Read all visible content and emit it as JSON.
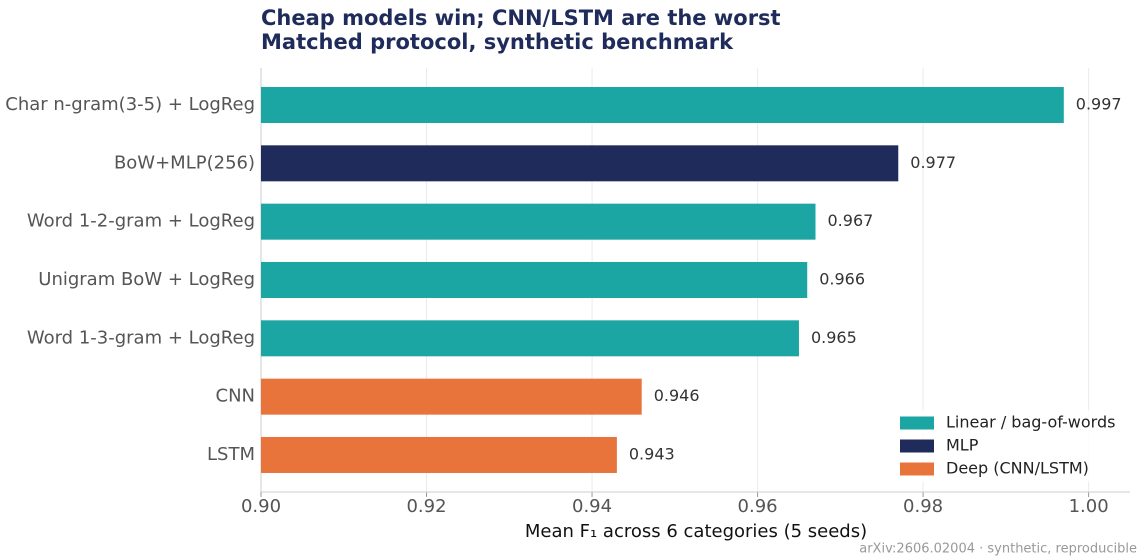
{
  "chart_data": {
    "type": "barh",
    "title": "Cheap models win; CNN/LSTM are the worst",
    "subtitle": "Matched protocol, synthetic benchmark",
    "xlabel": "Mean F₁ across 6 categories (5 seeds)",
    "footnote": "arXiv:2606.02004 · synthetic, reproducible",
    "categories": [
      "Char n-gram(3-5) + LogReg",
      "BoW+MLP(256)",
      "Word 1-2-gram + LogReg",
      "Unigram BoW + LogReg",
      "Word 1-3-gram + LogReg",
      "CNN",
      "LSTM"
    ],
    "values": [
      0.997,
      0.977,
      0.967,
      0.966,
      0.965,
      0.946,
      0.943
    ],
    "colors": [
      "#1ba5a3",
      "#1f2b5a",
      "#1ba5a3",
      "#1ba5a3",
      "#1ba5a3",
      "#e8743c",
      "#e8743c"
    ],
    "legend": [
      {
        "name": "Linear / bag-of-words",
        "color": "#1ba5a3"
      },
      {
        "name": "MLP",
        "color": "#1f2b5a"
      },
      {
        "name": "Deep (CNN/LSTM)",
        "color": "#e8743c"
      }
    ],
    "legend_position": "lower right",
    "xlim": [
      0.9,
      1.005
    ],
    "xticks": [
      {
        "value": 0.9,
        "label": "0.90"
      },
      0.92,
      0.94,
      0.96,
      0.98,
      {
        "value": 1.0,
        "label": "1.00"
      }
    ],
    "grid": true
  }
}
